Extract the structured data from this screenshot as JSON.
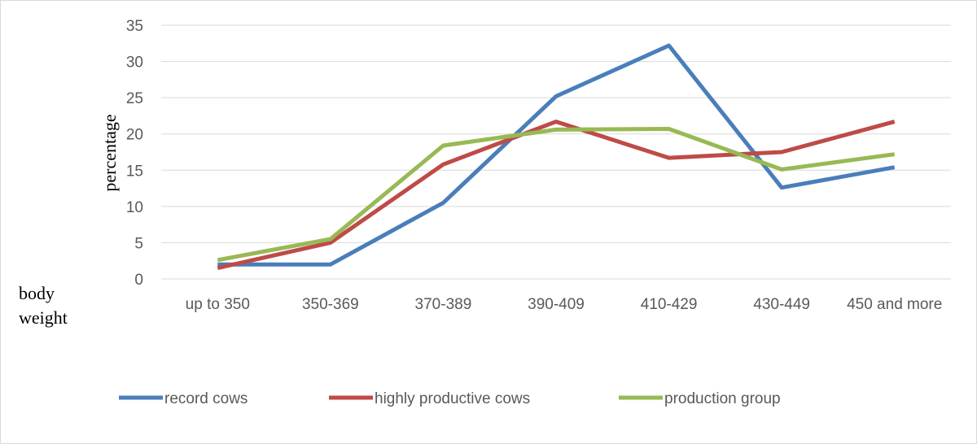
{
  "chart_data": {
    "type": "line",
    "title": "",
    "xlabel": "body weight",
    "ylabel": "percentage",
    "categories": [
      "up to 350",
      "350-369",
      "370-389",
      "390-409",
      "410-429",
      "430-449",
      "450 and more"
    ],
    "ylim": [
      0,
      35
    ],
    "yticks": [
      0,
      5,
      10,
      15,
      20,
      25,
      30,
      35
    ],
    "grid": true,
    "legend_position": "bottom",
    "series": [
      {
        "name": "record cows",
        "color": "#4a7ebb",
        "values": [
          2.0,
          2.0,
          10.5,
          25.2,
          32.2,
          12.6,
          15.4
        ]
      },
      {
        "name": "highly productive cows",
        "color": "#be4b48",
        "values": [
          1.5,
          5.0,
          15.8,
          21.7,
          16.7,
          17.5,
          21.7
        ]
      },
      {
        "name": "production group",
        "color": "#98b954",
        "values": [
          2.6,
          5.5,
          18.4,
          20.6,
          20.7,
          15.1,
          17.2
        ]
      }
    ]
  }
}
